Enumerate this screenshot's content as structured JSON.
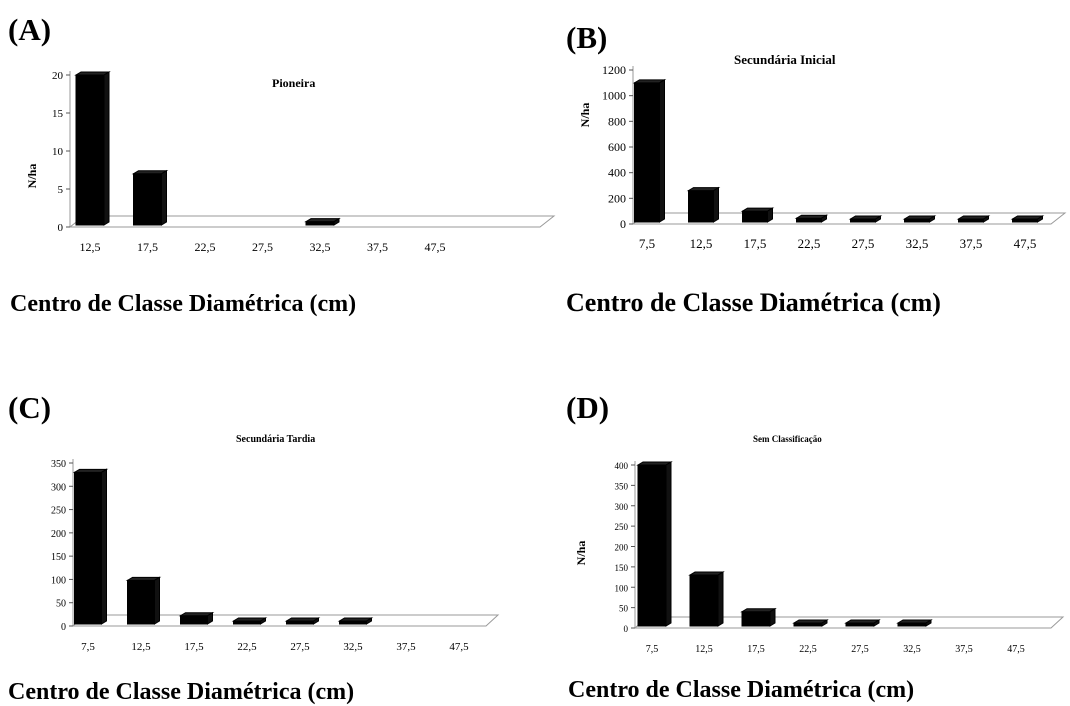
{
  "chart_data": [
    {
      "type": "bar",
      "panel_label": "(A)",
      "title": "Pioneira",
      "ylabel": "N/ha",
      "xlabel": "Centro de Classe Diamétrica (cm)",
      "categories": [
        "12,5",
        "17,5",
        "22,5",
        "27,5",
        "32,5",
        "37,5",
        "47,5"
      ],
      "values": [
        20,
        7,
        0,
        0,
        0.7,
        0,
        0
      ],
      "yticks": [
        "0",
        "5",
        "10",
        "15",
        "20"
      ],
      "ylim": [
        0,
        20
      ]
    },
    {
      "type": "bar",
      "panel_label": "(B)",
      "title": "Secundária Inicial",
      "ylabel": "N/ha",
      "xlabel": "Centro de Classe Diamétrica (cm)",
      "categories": [
        "7,5",
        "12,5",
        "17,5",
        "22,5",
        "27,5",
        "32,5",
        "37,5",
        "47,5"
      ],
      "values": [
        1100,
        260,
        100,
        45,
        15,
        8,
        3,
        3
      ],
      "yticks": [
        "0",
        "200",
        "400",
        "600",
        "800",
        "1000",
        "1200"
      ],
      "ylim": [
        0,
        1200
      ]
    },
    {
      "type": "bar",
      "panel_label": "(C)",
      "title": "Secundária Tardia",
      "ylabel": "",
      "xlabel": "Centro de Classe Diamétrica (cm)",
      "categories": [
        "7,5",
        "12,5",
        "17,5",
        "22,5",
        "27,5",
        "32,5",
        "37,5",
        "47,5"
      ],
      "values": [
        330,
        98,
        22,
        8,
        2,
        2,
        0,
        0
      ],
      "yticks": [
        "0",
        "50",
        "100",
        "150",
        "200",
        "250",
        "300",
        "350"
      ],
      "ylim": [
        0,
        350
      ]
    },
    {
      "type": "bar",
      "panel_label": "(D)",
      "title": "Sem Classificação",
      "ylabel": "N/ha",
      "xlabel": "Centro de Classe Diamétrica (cm)",
      "categories": [
        "7,5",
        "12,5",
        "17,5",
        "22,5",
        "27,5",
        "32,5",
        "37,5",
        "47,5"
      ],
      "values": [
        400,
        130,
        40,
        8,
        4,
        3,
        0,
        0
      ],
      "yticks": [
        "0",
        "50",
        "100",
        "150",
        "200",
        "250",
        "300",
        "350",
        "400"
      ],
      "ylim": [
        0,
        400
      ]
    }
  ]
}
